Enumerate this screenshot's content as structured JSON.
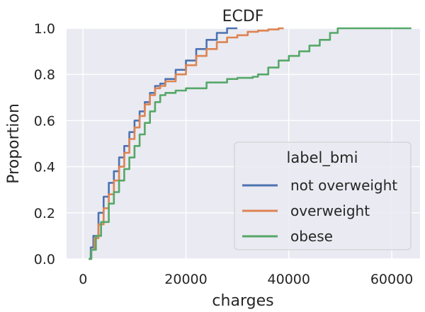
{
  "chart_data": {
    "type": "line",
    "title": "ECDF",
    "xlabel": "charges",
    "ylabel": "Proportion",
    "xlim": [
      -3200,
      65500
    ],
    "ylim": [
      0,
      1
    ],
    "xticks": [
      0,
      20000,
      40000,
      60000
    ],
    "xtick_labels": [
      "0",
      "20000",
      "40000",
      "60000"
    ],
    "yticks": [
      0,
      0.2,
      0.4,
      0.6,
      0.8,
      1.0
    ],
    "ytick_labels": [
      "0.0",
      "0.2",
      "0.4",
      "0.6",
      "0.8",
      "1.0"
    ],
    "grid": true,
    "legend_title": "label_bmi",
    "legend_position": "lower-right",
    "series": [
      {
        "name": "not overweight",
        "color": "#4c72b0",
        "points": [
          [
            1100,
            0
          ],
          [
            1500,
            0.05
          ],
          [
            2000,
            0.1
          ],
          [
            3000,
            0.2
          ],
          [
            4000,
            0.27
          ],
          [
            5000,
            0.33
          ],
          [
            6000,
            0.38
          ],
          [
            7000,
            0.44
          ],
          [
            8000,
            0.49
          ],
          [
            9000,
            0.55
          ],
          [
            10000,
            0.6
          ],
          [
            11000,
            0.64
          ],
          [
            12000,
            0.68
          ],
          [
            13000,
            0.72
          ],
          [
            14000,
            0.75
          ],
          [
            15000,
            0.76
          ],
          [
            16000,
            0.78
          ],
          [
            18000,
            0.82
          ],
          [
            20000,
            0.86
          ],
          [
            22000,
            0.91
          ],
          [
            24000,
            0.95
          ],
          [
            26000,
            0.98
          ],
          [
            28000,
            1.0
          ],
          [
            30000,
            1.0
          ]
        ]
      },
      {
        "name": "overweight",
        "color": "#dd8452",
        "points": [
          [
            1200,
            0
          ],
          [
            1600,
            0.04
          ],
          [
            2200,
            0.09
          ],
          [
            3000,
            0.15
          ],
          [
            4000,
            0.22
          ],
          [
            5000,
            0.28
          ],
          [
            6000,
            0.34
          ],
          [
            7000,
            0.4
          ],
          [
            8000,
            0.46
          ],
          [
            9000,
            0.52
          ],
          [
            10000,
            0.57
          ],
          [
            11000,
            0.62
          ],
          [
            12000,
            0.67
          ],
          [
            13000,
            0.71
          ],
          [
            14000,
            0.74
          ],
          [
            15000,
            0.75
          ],
          [
            16000,
            0.77
          ],
          [
            18000,
            0.8
          ],
          [
            20000,
            0.84
          ],
          [
            22000,
            0.88
          ],
          [
            24000,
            0.91
          ],
          [
            26000,
            0.94
          ],
          [
            28000,
            0.96
          ],
          [
            30000,
            0.97
          ],
          [
            32000,
            0.985
          ],
          [
            34000,
            0.99
          ],
          [
            36000,
            0.995
          ],
          [
            38000,
            1.0
          ],
          [
            39000,
            1.0
          ]
        ]
      },
      {
        "name": "obese",
        "color": "#55a868",
        "points": [
          [
            1100,
            0
          ],
          [
            1600,
            0.04
          ],
          [
            2500,
            0.1
          ],
          [
            3500,
            0.16
          ],
          [
            5000,
            0.24
          ],
          [
            6000,
            0.29
          ],
          [
            7000,
            0.34
          ],
          [
            8000,
            0.39
          ],
          [
            9000,
            0.44
          ],
          [
            10000,
            0.49
          ],
          [
            11000,
            0.54
          ],
          [
            12000,
            0.59
          ],
          [
            13000,
            0.64
          ],
          [
            14000,
            0.68
          ],
          [
            15000,
            0.71
          ],
          [
            16000,
            0.72
          ],
          [
            18000,
            0.73
          ],
          [
            20000,
            0.74
          ],
          [
            24000,
            0.765
          ],
          [
            28000,
            0.78
          ],
          [
            30000,
            0.785
          ],
          [
            33000,
            0.79
          ],
          [
            34000,
            0.8
          ],
          [
            36000,
            0.83
          ],
          [
            38000,
            0.86
          ],
          [
            40000,
            0.88
          ],
          [
            42000,
            0.9
          ],
          [
            44000,
            0.925
          ],
          [
            46000,
            0.95
          ],
          [
            48000,
            0.98
          ],
          [
            49500,
            1.0
          ],
          [
            63800,
            1.0
          ]
        ]
      }
    ]
  }
}
